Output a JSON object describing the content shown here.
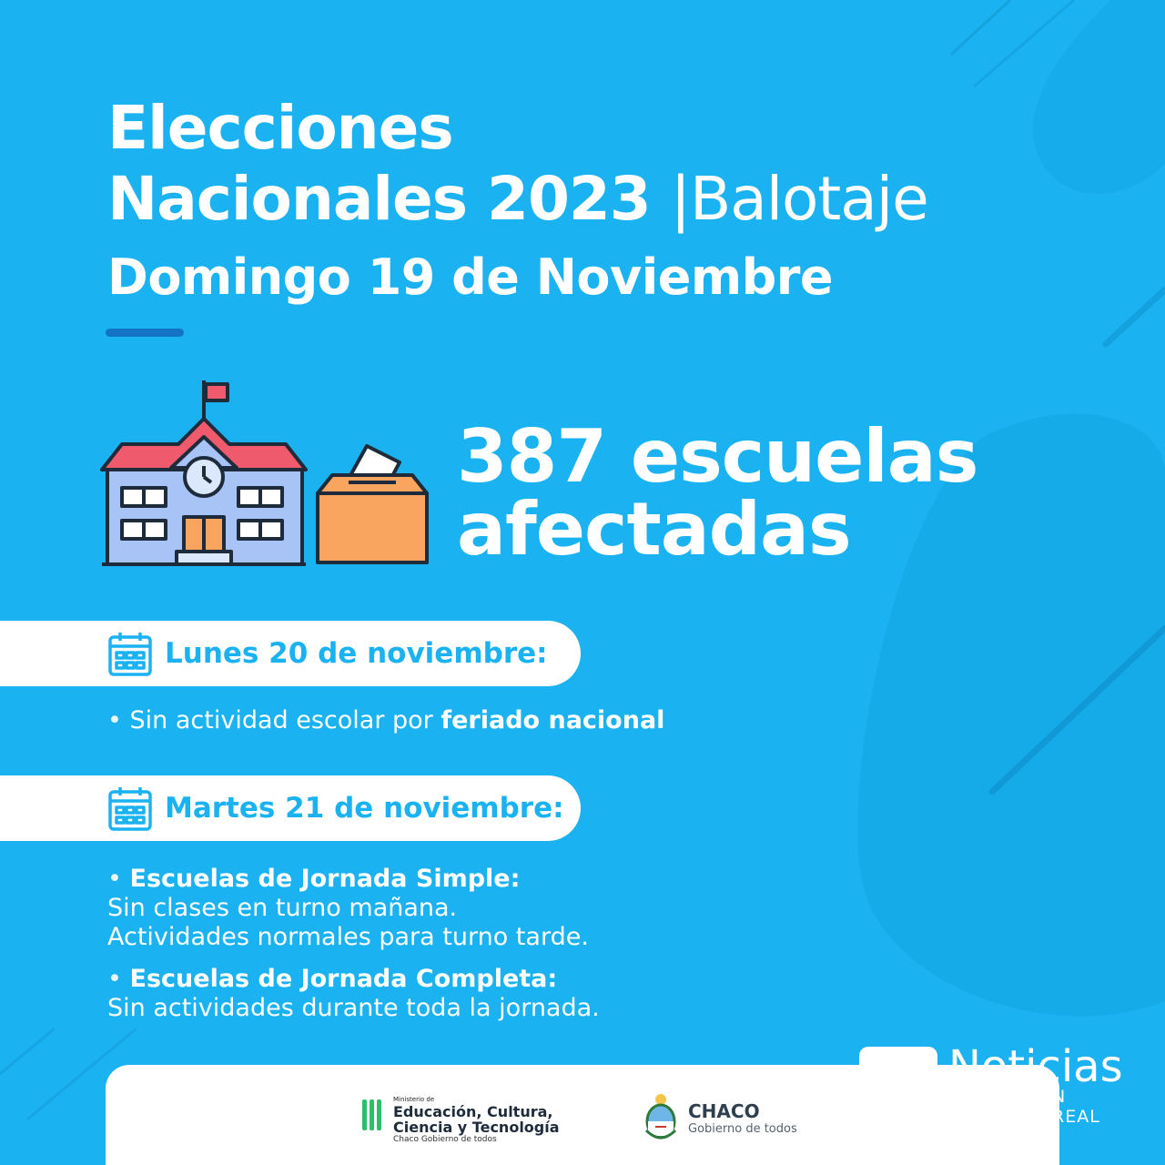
{
  "header": {
    "title_line1": "Elecciones",
    "title_line2_bold": "Nacionales 2023",
    "title_separator": "|",
    "title_line2_light": "Balotaje",
    "subtitle": "Domingo 19 de Noviembre"
  },
  "headline": {
    "line1": "387 escuelas",
    "line2": "afectadas"
  },
  "day1": {
    "label": "Lunes 20 de noviembre:",
    "bullet": "•",
    "text": "Sin actividad escolar por",
    "emphasis": "feriado nacional"
  },
  "day2": {
    "label": "Martes 21 de noviembre:",
    "item1_bullet": "•",
    "item1_heading": "Escuelas de Jornada Simple:",
    "item1_line1": "Sin clases en turno mañana.",
    "item1_line2": "Actividades normales para turno tarde.",
    "item2_bullet": "•",
    "item2_heading": "Escuelas de Jornada Completa:",
    "item2_line1": "Sin actividades durante toda la jornada."
  },
  "brand": {
    "name": "Noticias",
    "tagline": "N REAL"
  },
  "footer": {
    "ministry_small": "Ministerio de",
    "ministry_line1": "Educación, Cultura,",
    "ministry_line2": "Ciencia y Tecnología",
    "ministry_foot": "Chaco Gobierno de todos",
    "chaco_name": "CHACO",
    "chaco_sub": "Gobierno de todos"
  },
  "colors": {
    "background": "#1ab2f0",
    "accent_dark": "#1473c4",
    "white": "#ffffff",
    "ministry_green": "#2bbf6c"
  },
  "icons": [
    "school-icon",
    "ballot-box-icon",
    "calendar-icon",
    "chaco-seal-icon",
    "ministry-bars-icon"
  ]
}
